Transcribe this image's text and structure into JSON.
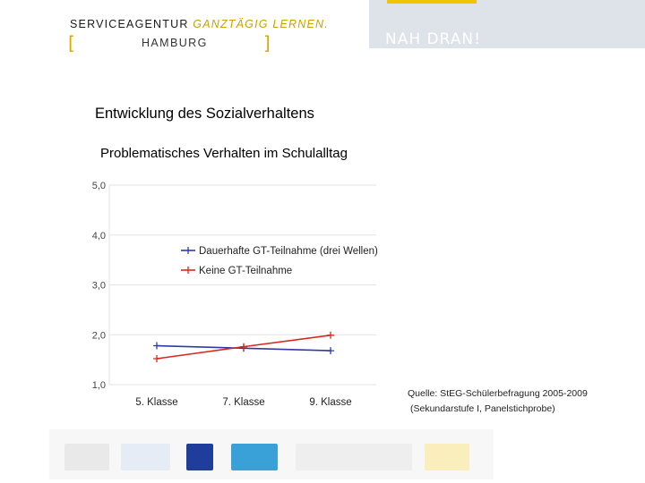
{
  "header": {
    "brand_main": "SERVICEAGENTUR",
    "brand_accent": "GANZTÄGIG LERNEN.",
    "city": "HAMBURG",
    "slogan": "NAH DRAN!"
  },
  "slide": {
    "title": "Entwicklung des Sozialverhaltens",
    "subtitle": "Problematisches Verhalten im Schulalltag"
  },
  "chart_data": {
    "type": "line",
    "categories": [
      "5. Klasse",
      "7. Klasse",
      "9. Klasse"
    ],
    "yticks": [
      "5,0",
      "4,0",
      "3,0",
      "2,0",
      "1,0"
    ],
    "ylim": [
      1,
      5
    ],
    "grid": true,
    "legend_position": "top-center",
    "series": [
      {
        "name": "Dauerhafte GT-Teilnahme (drei Wellen)",
        "color": "#2f3aa8",
        "values": [
          1.78,
          1.73,
          1.68
        ]
      },
      {
        "name": "Keine GT-Teilnahme",
        "color": "#d42b20",
        "values": [
          1.52,
          1.76,
          1.99
        ]
      }
    ]
  },
  "source": {
    "line1": "Quelle: StEG-Schülerbefragung 2005-2009",
    "line2": "(Sekundarstufe I, Panelstichprobe)"
  },
  "colors": {
    "accent": "#f2c300",
    "header_band": "#dde3e8"
  }
}
